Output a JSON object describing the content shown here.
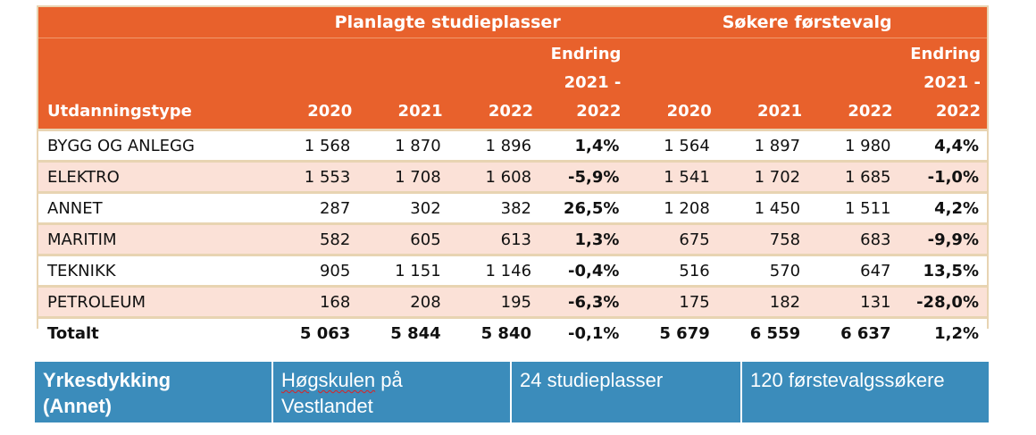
{
  "table": {
    "group_headers": {
      "planned": "Planlagte studieplasser",
      "applicants": "Søkere førstevalg"
    },
    "columns": {
      "type": "Utdanningstype",
      "y2020": "2020",
      "y2021": "2021",
      "y2022": "2022",
      "change_line1": "Endring",
      "change_line2": "2021 -",
      "change_line3": "2022"
    },
    "rows": [
      {
        "type": "BYGG OG ANLEGG",
        "p2020": "1 568",
        "p2021": "1 870",
        "p2022": "1 896",
        "pchg": "1,4%",
        "s2020": "1 564",
        "s2021": "1 897",
        "s2022": "1 980",
        "schg": "4,4%"
      },
      {
        "type": "ELEKTRO",
        "p2020": "1 553",
        "p2021": "1 708",
        "p2022": "1 608",
        "pchg": "-5,9%",
        "s2020": "1 541",
        "s2021": "1 702",
        "s2022": "1 685",
        "schg": "-1,0%"
      },
      {
        "type": "ANNET",
        "p2020": "287",
        "p2021": "302",
        "p2022": "382",
        "pchg": "26,5%",
        "s2020": "1 208",
        "s2021": "1 450",
        "s2022": "1 511",
        "schg": "4,2%"
      },
      {
        "type": "MARITIM",
        "p2020": "582",
        "p2021": "605",
        "p2022": "613",
        "pchg": "1,3%",
        "s2020": "675",
        "s2021": "758",
        "s2022": "683",
        "schg": "-9,9%"
      },
      {
        "type": "TEKNIKK",
        "p2020": "905",
        "p2021": "1 151",
        "p2022": "1 146",
        "pchg": "-0,4%",
        "s2020": "516",
        "s2021": "570",
        "s2022": "647",
        "schg": "13,5%"
      },
      {
        "type": "PETROLEUM",
        "p2020": "168",
        "p2021": "208",
        "p2022": "195",
        "pchg": "-6,3%",
        "s2020": "175",
        "s2021": "182",
        "s2022": "131",
        "schg": "-28,0%"
      }
    ],
    "total": {
      "type": "Totalt",
      "p2020": "5 063",
      "p2021": "5 844",
      "p2022": "5 840",
      "pchg": "-0,1%",
      "s2020": "5 679",
      "s2021": "6 559",
      "s2022": "6 637",
      "schg": "1,2%"
    }
  },
  "info_bar": {
    "program_line1": "Yrkesdykking",
    "program_line2": "(Annet)",
    "school_word1": "Høgskulen",
    "school_rest": " på",
    "school_line2": "Vestlandet",
    "places": "24 studieplasser",
    "applicants": "120 førstevalgssøkere"
  },
  "colors": {
    "header_orange": "#e8612c",
    "row_pink": "#fbe1d7",
    "frame_tan": "#e8d4b2",
    "bar_blue": "#3b8cbb"
  }
}
